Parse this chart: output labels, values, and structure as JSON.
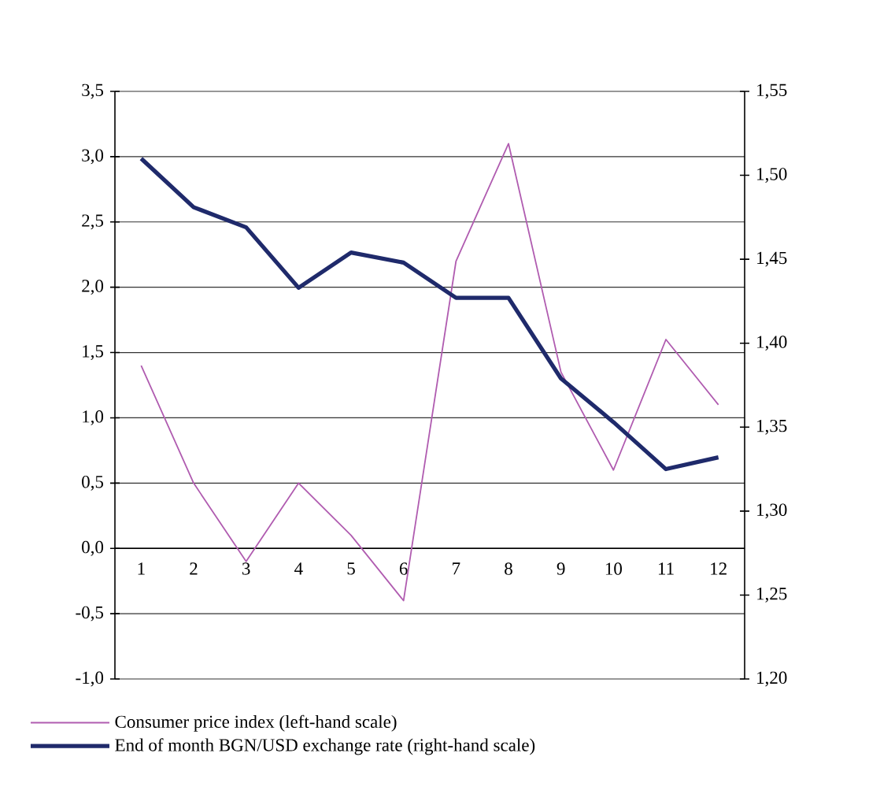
{
  "chart_data": {
    "type": "line",
    "categories": [
      "1",
      "2",
      "3",
      "4",
      "5",
      "6",
      "7",
      "8",
      "9",
      "10",
      "11",
      "12"
    ],
    "series": [
      {
        "name": "Consumer price index (left-hand scale)",
        "color": "#b05cb0",
        "values": [
          1.4,
          0.5,
          -0.1,
          0.5,
          0.1,
          -0.4,
          2.2,
          3.1,
          1.35,
          0.6,
          1.6,
          1.1
        ]
      },
      {
        "name": "End of month BGN/USD exchange rate (right-hand scale)",
        "color": "#1f2a6b",
        "axis": "y2",
        "values": [
          1.51,
          1.481,
          1.469,
          1.433,
          1.454,
          1.448,
          1.427,
          1.427,
          1.379,
          1.353,
          1.325,
          1.332
        ]
      }
    ],
    "ylim": [
      -1.0,
      3.5
    ],
    "yticks": [
      {
        "value": -1.0,
        "label": "-1,0"
      },
      {
        "value": -0.5,
        "label": "-0,5"
      },
      {
        "value": 0.0,
        "label": "0,0"
      },
      {
        "value": 0.5,
        "label": "0,5"
      },
      {
        "value": 1.0,
        "label": "1,0"
      },
      {
        "value": 1.5,
        "label": "1,5"
      },
      {
        "value": 2.0,
        "label": "2,0"
      },
      {
        "value": 2.5,
        "label": "2,5"
      },
      {
        "value": 3.0,
        "label": "3,0"
      },
      {
        "value": 3.5,
        "label": "3,5"
      }
    ],
    "y2lim": [
      1.2,
      1.55
    ],
    "y2ticks": [
      {
        "value": 1.2,
        "label": "1,20"
      },
      {
        "value": 1.25,
        "label": "1,25"
      },
      {
        "value": 1.3,
        "label": "1,30"
      },
      {
        "value": 1.35,
        "label": "1,35"
      },
      {
        "value": 1.4,
        "label": "1,40"
      },
      {
        "value": 1.45,
        "label": "1,45"
      },
      {
        "value": 1.5,
        "label": "1,50"
      },
      {
        "value": 1.55,
        "label": "1,55"
      }
    ],
    "grid": "y",
    "legend": "bottom",
    "marker": "none",
    "line_style": "solid"
  }
}
